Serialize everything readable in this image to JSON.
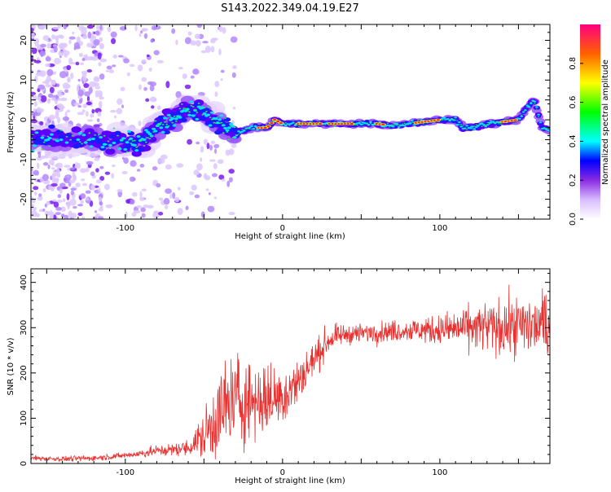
{
  "title": "S143.2022.349.04.19.E27",
  "chart_data": [
    {
      "type": "heatmap",
      "xlabel": "Height of straight line (km)",
      "ylabel": "Frequency (Hz)",
      "xlim": [
        -160,
        170
      ],
      "ylim": [
        -25,
        24
      ],
      "xticks": [
        -100,
        0,
        100
      ],
      "yticks": [
        -20,
        -10,
        0,
        10,
        20
      ],
      "colorbar": {
        "label": "Normalized spectral amplitude",
        "range": [
          0,
          1
        ],
        "ticks": [
          "0.0",
          "0.2",
          "0.4",
          "0.6",
          "0.8"
        ],
        "colormap": [
          "#ffffff",
          "#b48cff",
          "#6a00ff",
          "#0000ff",
          "#00ffff",
          "#00ff00",
          "#ffff00",
          "#ff8000",
          "#ff0000",
          "#ff0080"
        ]
      },
      "ridge": {
        "description_points": [
          [
            -160,
            -5
          ],
          [
            -140,
            -5
          ],
          [
            -120,
            -5
          ],
          [
            -100,
            -5.5
          ],
          [
            -90,
            -6
          ],
          [
            -80,
            -2
          ],
          [
            -70,
            0
          ],
          [
            -60,
            3
          ],
          [
            -50,
            2
          ],
          [
            -40,
            -1
          ],
          [
            -30,
            -3.5
          ],
          [
            -20,
            -2
          ],
          [
            -10,
            -2
          ],
          [
            -5,
            0
          ],
          [
            0,
            -1
          ],
          [
            10,
            -1
          ],
          [
            20,
            -1
          ],
          [
            40,
            -1
          ],
          [
            60,
            -1
          ],
          [
            70,
            -1.5
          ],
          [
            80,
            -1
          ],
          [
            90,
            -0.5
          ],
          [
            100,
            0
          ],
          [
            110,
            0
          ],
          [
            115,
            -2
          ],
          [
            120,
            -2
          ],
          [
            130,
            -1
          ],
          [
            140,
            -0.5
          ],
          [
            150,
            0
          ],
          [
            155,
            3
          ],
          [
            160,
            5
          ],
          [
            165,
            -2
          ],
          [
            170,
            -2.5
          ]
        ],
        "peak_segments": [
          [
            -15,
            0
          ],
          [
            10,
            25
          ],
          [
            30,
            45
          ],
          [
            60,
            65
          ],
          [
            85,
            100
          ],
          [
            140,
            148
          ]
        ]
      }
    },
    {
      "type": "line",
      "xlabel": "Height of straight line (km)",
      "ylabel": "SNR (10 * v/v)",
      "xlim": [
        -160,
        170
      ],
      "ylim": [
        0,
        430
      ],
      "xticks": [
        -100,
        0,
        100
      ],
      "yticks": [
        0,
        100,
        200,
        300,
        400
      ],
      "color": "#e8302f",
      "trend": [
        [
          -160,
          12
        ],
        [
          -140,
          10
        ],
        [
          -120,
          12
        ],
        [
          -100,
          18
        ],
        [
          -90,
          22
        ],
        [
          -80,
          28
        ],
        [
          -70,
          30
        ],
        [
          -60,
          35
        ],
        [
          -50,
          60
        ],
        [
          -40,
          110
        ],
        [
          -30,
          140
        ],
        [
          -20,
          140
        ],
        [
          -10,
          140
        ],
        [
          0,
          150
        ],
        [
          10,
          180
        ],
        [
          20,
          230
        ],
        [
          30,
          275
        ],
        [
          40,
          285
        ],
        [
          60,
          290
        ],
        [
          80,
          295
        ],
        [
          100,
          295
        ],
        [
          120,
          300
        ],
        [
          140,
          300
        ],
        [
          160,
          305
        ],
        [
          170,
          305
        ]
      ],
      "noise": [
        [
          -160,
          5
        ],
        [
          -100,
          6
        ],
        [
          -60,
          15
        ],
        [
          -50,
          50
        ],
        [
          -40,
          90
        ],
        [
          -30,
          100
        ],
        [
          -20,
          80
        ],
        [
          0,
          60
        ],
        [
          20,
          35
        ],
        [
          40,
          18
        ],
        [
          80,
          22
        ],
        [
          100,
          30
        ],
        [
          130,
          50
        ],
        [
          170,
          70
        ]
      ]
    }
  ]
}
